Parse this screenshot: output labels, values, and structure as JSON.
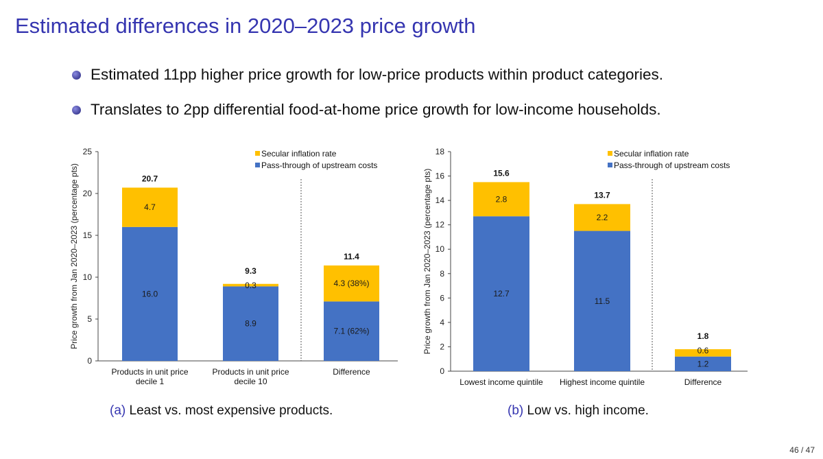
{
  "title": "Estimated differences in 2020–2023 price growth",
  "bullets": [
    "Estimated 11pp higher price growth for low-price products within product categories.",
    "Translates to 2pp differential food-at-home price growth for low-income households."
  ],
  "captions": [
    {
      "label": "(a)",
      "text": "Least vs. most expensive products."
    },
    {
      "label": "(b)",
      "text": "Low vs. high income."
    }
  ],
  "page_number": "46 / 47",
  "colors": {
    "secular": "#FFC000",
    "passthrough": "#4472C4",
    "title": "#3535b0"
  },
  "chart_data": [
    {
      "type": "bar",
      "stacked": true,
      "ylabel": "Price growth from Jan 2020–2023 (percentage pts)",
      "ylim": [
        0,
        25
      ],
      "yticks": [
        0,
        5,
        10,
        15,
        20,
        25
      ],
      "legend_position": "top-right",
      "categories": [
        [
          "Products in unit price",
          "decile 1"
        ],
        [
          "Products in unit price",
          "decile 10"
        ],
        [
          "Difference"
        ]
      ],
      "series": [
        {
          "name": "Pass-through of upstream costs",
          "values": [
            16.0,
            8.9,
            7.1
          ],
          "labels": [
            "16.0",
            "8.9",
            "7.1 (62%)"
          ]
        },
        {
          "name": "Secular inflation rate",
          "values": [
            4.7,
            0.3,
            4.3
          ],
          "labels": [
            "4.7",
            "0.3",
            "4.3 (38%)"
          ]
        }
      ],
      "totals": [
        "20.7",
        "9.3",
        "11.4"
      ]
    },
    {
      "type": "bar",
      "stacked": true,
      "ylabel": "Price growth from Jan 2020–2023 (percentage pts)",
      "ylim": [
        0,
        18
      ],
      "yticks": [
        0,
        2,
        4,
        6,
        8,
        10,
        12,
        14,
        16,
        18
      ],
      "legend_position": "top-right",
      "categories": [
        [
          "Lowest income quintile"
        ],
        [
          "Highest income quintile"
        ],
        [
          "Difference"
        ]
      ],
      "series": [
        {
          "name": "Pass-through of upstream costs",
          "values": [
            12.7,
            11.5,
            1.2
          ],
          "labels": [
            "12.7",
            "11.5",
            "1.2"
          ]
        },
        {
          "name": "Secular inflation rate",
          "values": [
            2.8,
            2.2,
            0.6
          ],
          "labels": [
            "2.8",
            "2.2",
            "0.6"
          ]
        }
      ],
      "totals": [
        "15.6",
        "13.7",
        "1.8"
      ]
    }
  ]
}
